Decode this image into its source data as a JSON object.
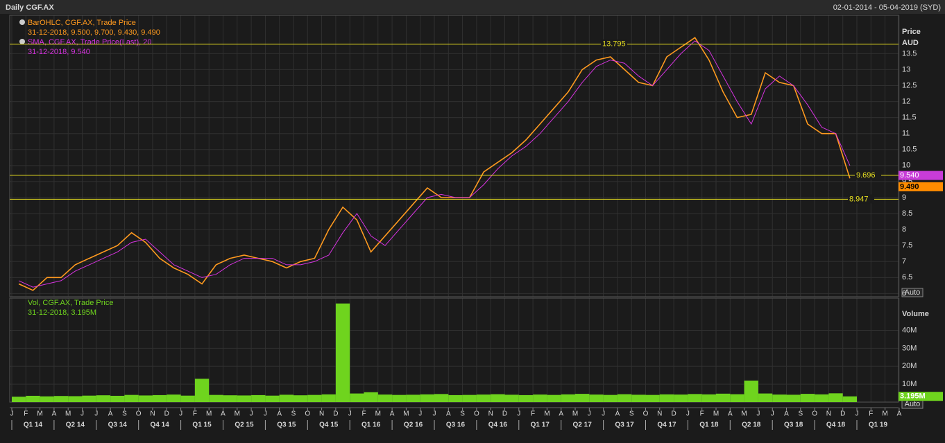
{
  "chart_data": [
    {
      "type": "line",
      "title": "Daily CGF.AX",
      "date_range": "02-01-2014 - 05-04-2019 (SYD)",
      "axis_title": "Price",
      "axis_unit": "AUD",
      "scale_button": "Auto",
      "legend": [
        "BarOHLC, CGF.AX, Trade Price",
        "31-12-2018, 9.500, 9.700, 9.430, 9.490",
        "SMA, CGF.AX, Trade Price(Last), 20",
        "31-12-2018, 9.540"
      ],
      "ylim": [
        5.9,
        14.7
      ],
      "yticks": [
        6,
        6.5,
        7,
        7.5,
        8,
        8.5,
        9,
        9.5,
        10,
        10.5,
        11,
        11.5,
        12,
        12.5,
        13,
        13.5
      ],
      "grid": true,
      "series": [
        {
          "name": "BarOHLC, CGF.AX, Trade Price",
          "color": "#ff9a1f",
          "values": [
            6.3,
            6.1,
            6.5,
            6.5,
            6.9,
            7.1,
            7.3,
            7.5,
            7.9,
            7.6,
            7.1,
            6.8,
            6.6,
            6.3,
            6.9,
            7.1,
            7.2,
            7.1,
            7.0,
            6.8,
            7.0,
            7.1,
            8.0,
            8.7,
            8.3,
            7.3,
            7.8,
            8.3,
            8.8,
            9.3,
            9.0,
            9.0,
            9.0,
            9.8,
            10.1,
            10.4,
            10.8,
            11.3,
            11.8,
            12.3,
            13.0,
            13.3,
            13.4,
            13.0,
            12.6,
            12.5,
            13.4,
            13.7,
            14.0,
            13.3,
            12.3,
            11.5,
            11.6,
            12.9,
            12.6,
            12.5,
            11.3,
            11.0,
            11.0,
            9.6,
            null,
            null,
            null,
            null
          ]
        },
        {
          "name": "SMA, CGF.AX, Trade Price(Last), 20",
          "color": "#d633e0",
          "values": [
            6.4,
            6.2,
            6.3,
            6.4,
            6.7,
            6.9,
            7.1,
            7.3,
            7.6,
            7.7,
            7.3,
            6.9,
            6.7,
            6.5,
            6.6,
            6.9,
            7.1,
            7.1,
            7.1,
            6.9,
            6.9,
            7.0,
            7.2,
            7.9,
            8.5,
            7.8,
            7.5,
            8.0,
            8.5,
            9.0,
            9.1,
            9.0,
            9.0,
            9.4,
            9.9,
            10.3,
            10.6,
            11.0,
            11.5,
            12.0,
            12.6,
            13.1,
            13.3,
            13.2,
            12.8,
            12.5,
            13.0,
            13.5,
            13.9,
            13.6,
            12.8,
            12.0,
            11.3,
            12.4,
            12.8,
            12.5,
            11.9,
            11.2,
            11.0,
            10.0,
            null,
            null,
            null,
            null
          ]
        }
      ],
      "reference_lines": [
        {
          "value": 13.795,
          "label": "13.795"
        },
        {
          "value": 9.696,
          "label": "9.696"
        },
        {
          "value": 8.947,
          "label": "8.947"
        }
      ],
      "last_tags": [
        {
          "value": 9.54,
          "label": "9.540",
          "color": "#c83cd8"
        },
        {
          "value": 9.49,
          "label": "9.490",
          "color": "#ff8c00"
        }
      ]
    },
    {
      "type": "bar",
      "axis_title": "Volume",
      "scale_button": "Auto",
      "legend": [
        "Vol, CGF.AX, Trade Price",
        "31-12-2018, 3.195M"
      ],
      "color": "#6fd41e",
      "ylim": [
        0,
        58000000
      ],
      "yticks": [
        {
          "value": 10000000,
          "label": "10M"
        },
        {
          "value": 20000000,
          "label": "20M"
        },
        {
          "value": 30000000,
          "label": "30M"
        },
        {
          "value": 40000000,
          "label": "40M"
        }
      ],
      "grid": true,
      "categories": [
        "J",
        "F",
        "M",
        "A",
        "M",
        "J",
        "J",
        "A",
        "S",
        "O",
        "N",
        "D",
        "J",
        "F",
        "M",
        "A",
        "M",
        "J",
        "J",
        "A",
        "S",
        "O",
        "N",
        "D",
        "J",
        "F",
        "M",
        "A",
        "M",
        "J",
        "J",
        "A",
        "S",
        "O",
        "N",
        "D",
        "J",
        "F",
        "M",
        "A",
        "M",
        "J",
        "J",
        "A",
        "S",
        "O",
        "N",
        "D",
        "J",
        "F",
        "M",
        "A",
        "M",
        "J",
        "J",
        "A",
        "S",
        "O",
        "N",
        "D",
        "J",
        "F",
        "M",
        "A"
      ],
      "quarters": [
        "Q1 14",
        "Q2 14",
        "Q3 14",
        "Q4 14",
        "Q1 15",
        "Q2 15",
        "Q3 15",
        "Q4 15",
        "Q1 16",
        "Q2 16",
        "Q3 16",
        "Q4 16",
        "Q1 17",
        "Q2 17",
        "Q3 17",
        "Q4 17",
        "Q1 18",
        "Q2 18",
        "Q3 18",
        "Q4 18",
        "Q1 19"
      ],
      "values": [
        3000000,
        3500000,
        3200000,
        3400000,
        3300000,
        3600000,
        3800000,
        3500000,
        4000000,
        3700000,
        3900000,
        4200000,
        3600000,
        13000000,
        4000000,
        3800000,
        3700000,
        3900000,
        3600000,
        4100000,
        3800000,
        4000000,
        4300000,
        55000000,
        4800000,
        5500000,
        4200000,
        4000000,
        4100000,
        4300000,
        4500000,
        3900000,
        4000000,
        4200000,
        4400000,
        4100000,
        3900000,
        4200000,
        4000000,
        4300000,
        4600000,
        4200000,
        4000000,
        4400000,
        4100000,
        4000000,
        4300000,
        4200000,
        4500000,
        4300000,
        4700000,
        4400000,
        12000000,
        4800000,
        4200000,
        4100000,
        4600000,
        4300000,
        4900000,
        3195000,
        null,
        null,
        null,
        null
      ],
      "last_tag": {
        "value": 3195000,
        "label": "3.195M"
      }
    }
  ]
}
